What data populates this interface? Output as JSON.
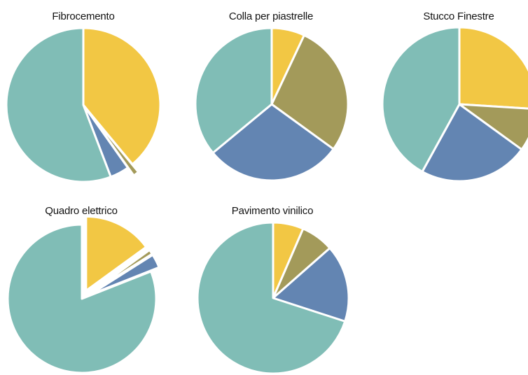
{
  "colors": {
    "yellow": "#F2C744",
    "olive": "#A39A5A",
    "blue": "#6385B2",
    "teal": "#80BDB6"
  },
  "chart_data": [
    {
      "type": "pie",
      "title": "Fibrocemento",
      "slices": [
        {
          "value": 39.0,
          "color": "#F2C744"
        },
        {
          "value": 1.2,
          "color": "#A39A5A",
          "exploded": true
        },
        {
          "value": 4.0,
          "color": "#6385B2"
        },
        {
          "value": 55.8,
          "color": "#80BDB6"
        }
      ]
    },
    {
      "type": "pie",
      "title": "Colla per piastrelle",
      "slices": [
        {
          "value": 7.0,
          "color": "#F2C744"
        },
        {
          "value": 28.0,
          "color": "#A39A5A"
        },
        {
          "value": 29.0,
          "color": "#6385B2"
        },
        {
          "value": 36.0,
          "color": "#80BDB6"
        }
      ]
    },
    {
      "type": "pie",
      "title": "Stucco Finestre",
      "slices": [
        {
          "value": 26.0,
          "color": "#F2C744"
        },
        {
          "value": 9.0,
          "color": "#A39A5A"
        },
        {
          "value": 23.0,
          "color": "#6385B2"
        },
        {
          "value": 42.0,
          "color": "#80BDB6"
        }
      ]
    },
    {
      "type": "pie",
      "title": "Quadro elettrico",
      "slices": [
        {
          "value": 15.0,
          "color": "#F2C744",
          "exploded": true
        },
        {
          "value": 1.0,
          "color": "#A39A5A",
          "exploded": true
        },
        {
          "value": 3.0,
          "color": "#6385B2",
          "exploded": true
        },
        {
          "value": 81.0,
          "color": "#80BDB6"
        }
      ]
    },
    {
      "type": "pie",
      "title": "Pavimento vinilico",
      "slices": [
        {
          "value": 6.5,
          "color": "#F2C744"
        },
        {
          "value": 7.0,
          "color": "#A39A5A"
        },
        {
          "value": 16.5,
          "color": "#6385B2"
        },
        {
          "value": 70.0,
          "color": "#80BDB6"
        }
      ]
    }
  ]
}
